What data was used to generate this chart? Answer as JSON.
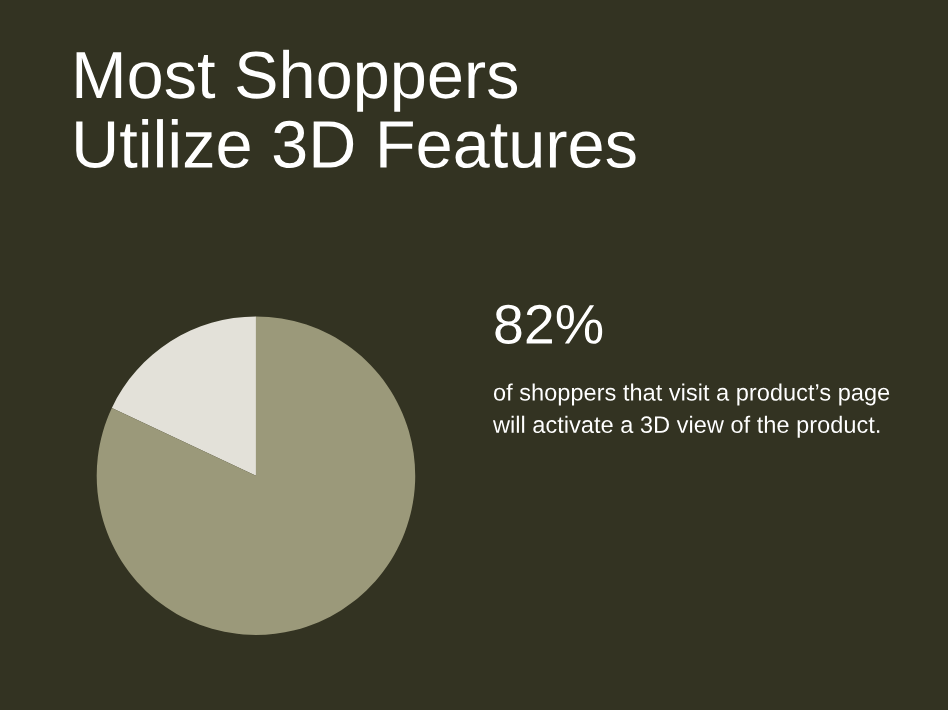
{
  "chart_data": {
    "type": "pie",
    "title": "Most Shoppers\nUtilize 3D Features",
    "categories": [
      null,
      null
    ],
    "values": [
      18,
      82
    ],
    "colors": [
      "#e3e1d9",
      "#9b997a"
    ],
    "annotations": [
      "82%",
      "of shoppers that visit a product’s page will activate a 3D view of the product."
    ]
  }
}
